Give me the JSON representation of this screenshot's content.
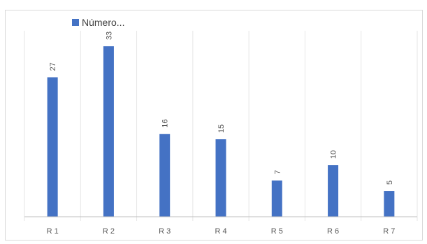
{
  "chart_data": {
    "type": "bar",
    "categories": [
      "R 1",
      "R 2",
      "R 3",
      "R 4",
      "R 5",
      "R 6",
      "R 7"
    ],
    "series": [
      {
        "name": "Número...",
        "values": [
          27,
          33,
          16,
          15,
          7,
          10,
          5
        ]
      }
    ],
    "ylim": [
      0,
      36
    ],
    "grid": "vertical-category-separators",
    "legend_position": "top-left",
    "colors": {
      "bar": "#4472c4",
      "grid": "#e6e6e6",
      "axis": "#bfbfbf"
    }
  }
}
